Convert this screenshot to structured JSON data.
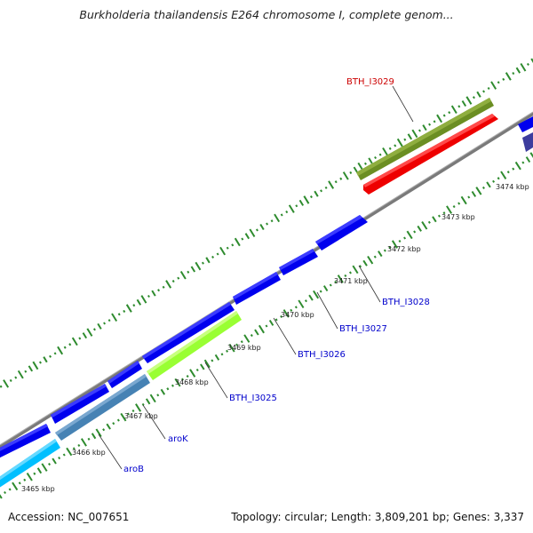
{
  "header": {
    "title": "Burkholderia thailandensis E264 chromosome I, complete genom..."
  },
  "footer": {
    "accession": "Accession: NC_007651",
    "summary": "Topology: circular; Length: 3,809,201 bp; Genes: 3,337"
  },
  "ticks": [
    "3465 kbp",
    "3466 kbp",
    "3467 kbp",
    "3468 kbp",
    "3469 kbp",
    "3470 kbp",
    "3471 kbp",
    "3472 kbp",
    "3473 kbp",
    "3474 kbp"
  ],
  "genes": [
    {
      "label": "BTH_I3029",
      "color": "#ff0000",
      "label_color": "#cc0000"
    },
    {
      "label": "BTH_I3028",
      "color": "#0000ee",
      "label_color": "#0000cc"
    },
    {
      "label": "BTH_I3027",
      "color": "#0000ee",
      "label_color": "#0000cc"
    },
    {
      "label": "BTH_I3026",
      "color": "#0000ee",
      "label_color": "#0000cc"
    },
    {
      "label": "BTH_I3025",
      "color": "#99ff33",
      "label_color": "#0000cc"
    },
    {
      "label": "aroK",
      "color": "#4682b4",
      "label_color": "#0000cc"
    },
    {
      "label": "aroB",
      "color": "#00bfff",
      "label_color": "#0000cc"
    }
  ],
  "colors": {
    "backbone": "#808080",
    "gc_ticks": "#2e8b2e",
    "forward_feature": "#6b8e23",
    "reverse_features": "#0000ee",
    "feature_edge_partial": "#3d3d9e"
  }
}
